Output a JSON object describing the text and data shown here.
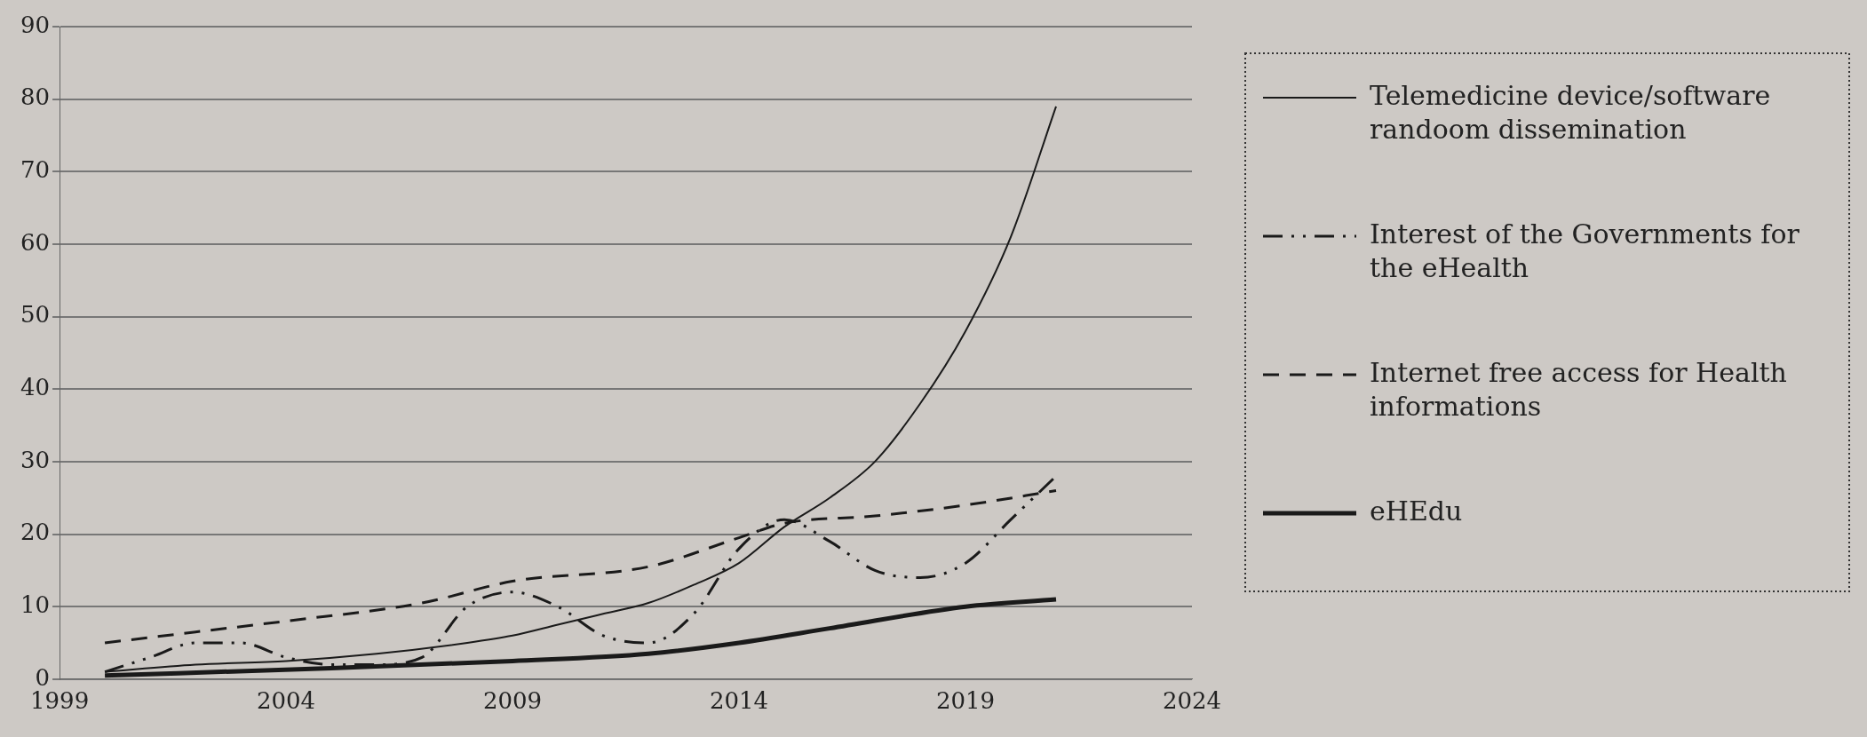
{
  "chart_data": {
    "type": "line",
    "xlim": [
      1999,
      2024
    ],
    "xticks": [
      1999,
      2004,
      2009,
      2014,
      2019,
      2024
    ],
    "ylim": [
      0,
      90
    ],
    "yticks": [
      0,
      10,
      20,
      30,
      40,
      50,
      60,
      70,
      80,
      90
    ],
    "grid": "y",
    "legend": "right",
    "marker": "none",
    "series": [
      {
        "name": "Telemedicine device/software randoom dissemination",
        "color": "#1a1a1a",
        "line_style": "solid",
        "x": [
          2000,
          2002,
          2004,
          2006,
          2008,
          2009,
          2010,
          2011,
          2012,
          2013,
          2014,
          2015,
          2016,
          2017,
          2018,
          2019,
          2020,
          2021
        ],
        "values": [
          1,
          2,
          2.5,
          3.5,
          5,
          6,
          7.5,
          9,
          10.5,
          13,
          16,
          21,
          25,
          30,
          38,
          48,
          61,
          79
        ]
      },
      {
        "name": "Interest of the Governments for the eHealth",
        "color": "#1a1a1a",
        "line_style": "dotted",
        "x": [
          2000,
          2001,
          2002,
          2003,
          2004,
          2005,
          2006,
          2007,
          2008,
          2009,
          2010,
          2011,
          2012,
          2013,
          2014,
          2015,
          2016,
          2017,
          2018,
          2019,
          2020,
          2021
        ],
        "values": [
          1,
          3,
          5,
          5,
          3,
          2,
          2,
          3,
          10,
          12,
          10,
          6,
          5,
          9,
          18,
          22,
          19,
          15,
          14,
          16,
          22,
          28
        ]
      },
      {
        "name": "Internet free access for Health informations",
        "color": "#1a1a1a",
        "line_style": "dashed",
        "x": [
          2000,
          2002,
          2004,
          2007,
          2009,
          2012,
          2014,
          2015,
          2017,
          2019,
          2021
        ],
        "values": [
          5,
          6.5,
          8,
          10.5,
          13.5,
          15.5,
          19.5,
          21.5,
          22.5,
          24,
          26
        ]
      },
      {
        "name": "eHEdu",
        "color": "#1a1a1a",
        "line_style": "solid",
        "x": [
          2000,
          2005,
          2009,
          2012,
          2014,
          2016,
          2019,
          2021
        ],
        "values": [
          0.5,
          1.5,
          2.5,
          3.5,
          5,
          7,
          10,
          11
        ]
      }
    ]
  }
}
